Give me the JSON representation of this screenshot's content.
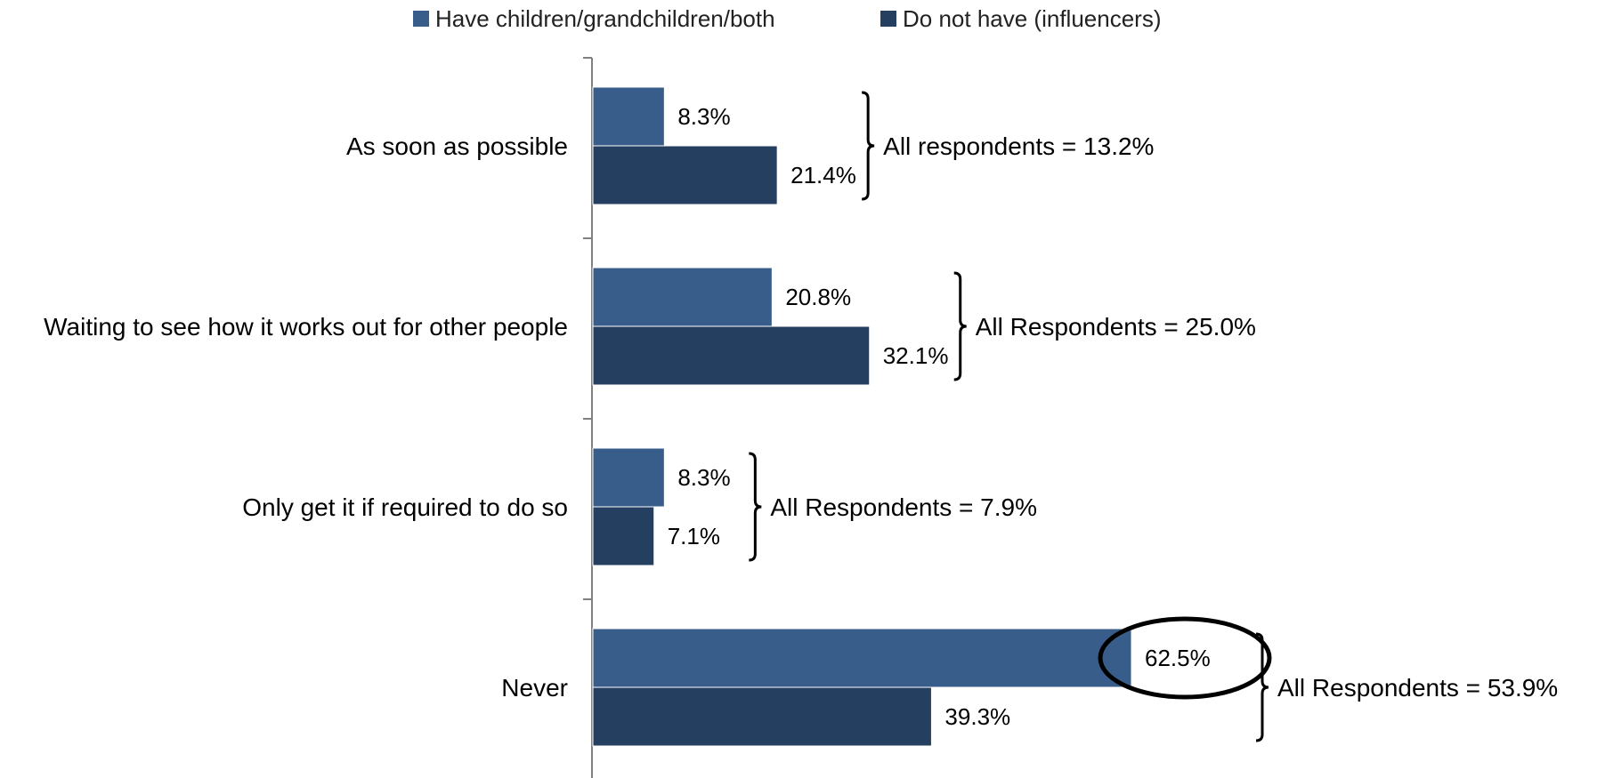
{
  "chart_data": {
    "type": "bar",
    "orientation": "horizontal",
    "categories": [
      "As soon as possible",
      "Waiting to see how it works out for other people",
      "Only get it if required to do so",
      "Never"
    ],
    "series": [
      {
        "name": "Have children/grandchildren/both",
        "values": [
          8.3,
          20.8,
          8.3,
          62.5
        ],
        "color": "#385d8a"
      },
      {
        "name": "Do not have (influencers)",
        "values": [
          21.4,
          32.1,
          7.1,
          39.3
        ],
        "color": "#253f61"
      }
    ],
    "value_labels": [
      [
        "8.3%",
        "21.4%"
      ],
      [
        "20.8%",
        "32.1%"
      ],
      [
        "8.3%",
        "7.1%"
      ],
      [
        "62.5%",
        "39.3%"
      ]
    ],
    "annotations": [
      "All respondents = 13.2%",
      "All Respondents = 25.0%",
      "All Respondents = 7.9%",
      "All Respondents = 53.9%"
    ],
    "highlighted_label": "62.5%",
    "title": "",
    "xlabel": "",
    "ylabel": "",
    "xlim": [
      0,
      100
    ],
    "legend_position": "top",
    "grid": false
  }
}
